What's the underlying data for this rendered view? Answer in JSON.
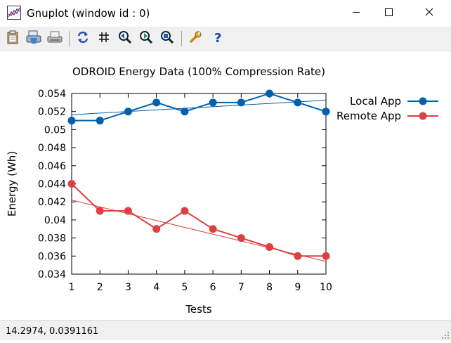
{
  "window": {
    "title": "Gnuplot (window id : 0)",
    "icons": [
      "gnuplot-app-icon",
      "minimize-icon",
      "maximize-icon",
      "close-icon"
    ]
  },
  "toolbar": {
    "buttons": [
      "clipboard-icon",
      "print-icon",
      "export-icon",
      "replot-icon",
      "grid-icon",
      "zoom-previous-icon",
      "zoom-next-icon",
      "autoscale-icon",
      "options-wrench-icon",
      "help-icon"
    ]
  },
  "status": {
    "coords": "14.2974,  0.0391161"
  },
  "chart_data": {
    "type": "line",
    "title": "ODROID Energy Data (100% Compression Rate)",
    "xlabel": "Tests",
    "ylabel": "Energy (Wh)",
    "xlim": [
      1,
      10
    ],
    "ylim": [
      0.034,
      0.054
    ],
    "xticks": [
      "1",
      "2",
      "3",
      "4",
      "5",
      "6",
      "7",
      "8",
      "9",
      "10"
    ],
    "yticks": [
      "0.034",
      "0.036",
      "0.038",
      "0.04",
      "0.042",
      "0.044",
      "0.046",
      "0.048",
      "0.05",
      "0.052",
      "0.054"
    ],
    "x": [
      1,
      2,
      3,
      4,
      5,
      6,
      7,
      8,
      9,
      10
    ],
    "legend_position": "outside-top-right",
    "grid": false,
    "series": [
      {
        "name": "Local App",
        "color": "#0060ad",
        "values": [
          0.051,
          0.051,
          0.052,
          0.053,
          0.052,
          0.053,
          0.053,
          0.054,
          0.053,
          0.052
        ],
        "trend": [
          0.05165,
          0.05325
        ]
      },
      {
        "name": "Remote App",
        "color": "#dd4040",
        "values": [
          0.044,
          0.041,
          0.041,
          0.039,
          0.041,
          0.039,
          0.038,
          0.037,
          0.036,
          0.036
        ],
        "trend": [
          0.0422,
          0.0354
        ]
      }
    ]
  }
}
